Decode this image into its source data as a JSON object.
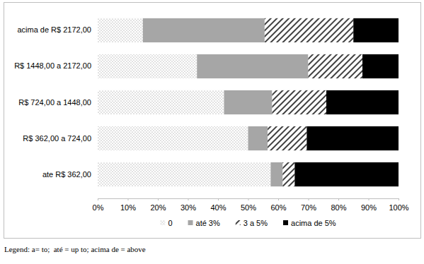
{
  "chart_data": {
    "type": "bar",
    "orientation": "horizontal",
    "stacked": true,
    "grid": false,
    "legend": "bottom",
    "categories": [
      "acima de R$ 2172,00",
      "R$ 1448,00 a 2172,00",
      "R$ 724,00 a 1448,00",
      "R$ 362,00 a 724,00",
      "ate R$ 362,00"
    ],
    "series": [
      {
        "name": "0",
        "color": "#7f7f7f",
        "values": [
          15,
          33,
          42,
          50,
          57.5
        ]
      },
      {
        "name": "até 3%",
        "color": "#a6a6a6",
        "values": [
          40.5,
          37,
          16,
          6.5,
          4
        ]
      },
      {
        "name": "3 a 5%",
        "color": "#404040",
        "values": [
          29.5,
          18,
          18,
          13,
          4
        ]
      },
      {
        "name": "acima de 5%",
        "color": "#000000",
        "values": [
          15,
          12,
          24,
          30.5,
          34.5
        ]
      }
    ],
    "xlim": [
      0,
      100
    ],
    "xticks": [
      {
        "value": 0,
        "label": "0%"
      },
      {
        "value": 10,
        "label": "10%"
      },
      {
        "value": 20,
        "label": "20%"
      },
      {
        "value": 30,
        "label": "30%"
      },
      {
        "value": 40,
        "label": "40%"
      },
      {
        "value": 50,
        "label": "50%"
      },
      {
        "value": 60,
        "label": "60%"
      },
      {
        "value": 70,
        "label": "70%"
      },
      {
        "value": 80,
        "label": "80%"
      },
      {
        "value": 90,
        "label": "90%"
      },
      {
        "value": 100,
        "label": "100%"
      }
    ],
    "annotations": [
      "Legend: a= to;  até = up to; acima de = above"
    ]
  }
}
